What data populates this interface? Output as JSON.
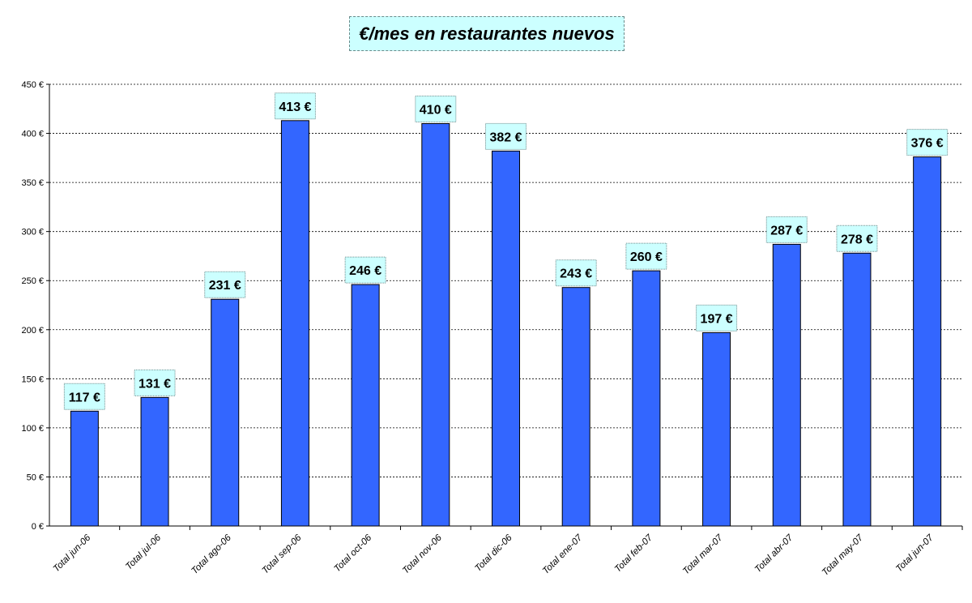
{
  "chart_data": {
    "type": "bar",
    "title": "€/mes en restaurantes nuevos",
    "xlabel": "",
    "ylabel": "",
    "categories": [
      "Total jun-06",
      "Total jul-06",
      "Total ago-06",
      "Total sep-06",
      "Total oct-06",
      "Total nov-06",
      "Total dic-06",
      "Total ene-07",
      "Total feb-07",
      "Total mar-07",
      "Total abr-07",
      "Total may-07",
      "Total jun-07"
    ],
    "values": [
      117,
      131,
      231,
      413,
      246,
      410,
      382,
      243,
      260,
      197,
      287,
      278,
      376
    ],
    "data_labels": [
      "117 €",
      "131 €",
      "231 €",
      "413 €",
      "246 €",
      "410 €",
      "382 €",
      "243 €",
      "260 €",
      "197 €",
      "287 €",
      "278 €",
      "376 €"
    ],
    "ylim": [
      0,
      450
    ],
    "y_ticks": [
      0,
      50,
      100,
      150,
      200,
      250,
      300,
      350,
      400,
      450
    ],
    "y_tick_labels": [
      "0 €",
      "50 €",
      "100 €",
      "150 €",
      "200 €",
      "250 €",
      "300 €",
      "350 €",
      "400 €",
      "450 €"
    ],
    "grid": true,
    "legend": "none",
    "colors": {
      "bar": "#3366ff",
      "bar_outline": "#000000",
      "label_box": "#ccffff",
      "grid": "#000000"
    }
  }
}
